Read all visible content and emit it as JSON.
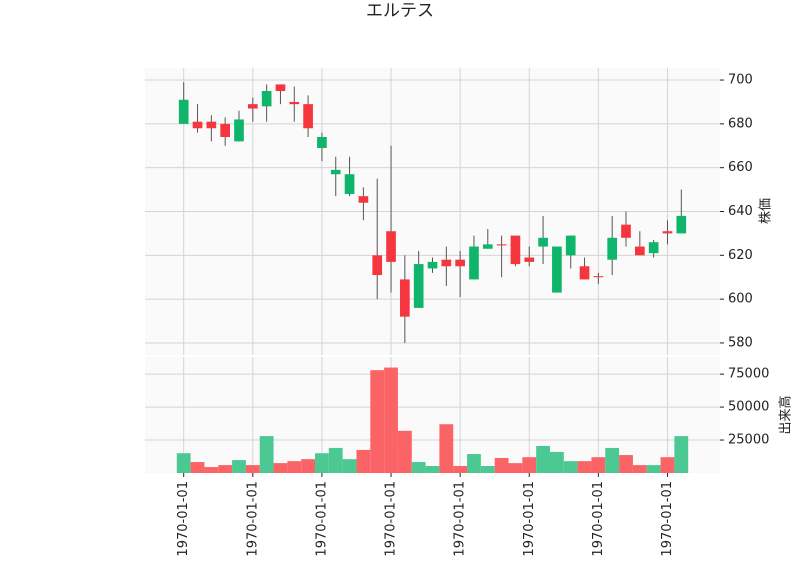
{
  "chart_data": {
    "type": "candlestick",
    "title": "エルテス",
    "ylabel": "株価",
    "volume_label": "出来高",
    "open": [
      680,
      681,
      681,
      680,
      672,
      689,
      688,
      698,
      690,
      689,
      669,
      657,
      648,
      647,
      620,
      631,
      609,
      596,
      614,
      618,
      618,
      609,
      623,
      625,
      629,
      619,
      624,
      603,
      620,
      615,
      610.5,
      618,
      634,
      624,
      621,
      631,
      630
    ],
    "high": [
      699,
      689,
      684,
      683,
      686,
      692,
      698,
      698,
      697,
      693,
      676,
      665,
      665,
      651,
      655,
      670,
      620,
      622,
      619,
      624,
      622,
      629,
      632,
      629,
      629,
      624,
      638,
      624,
      629,
      619,
      612,
      638,
      640,
      631,
      627,
      636,
      650
    ],
    "low": [
      680,
      676,
      672,
      670,
      672,
      681,
      681,
      689,
      681,
      674,
      663,
      647,
      647,
      636,
      600,
      603,
      580,
      596,
      612,
      606,
      601,
      609,
      623,
      610,
      615,
      615,
      616,
      603,
      614,
      609,
      607,
      611,
      624,
      620,
      619,
      625,
      630
    ],
    "close": [
      691,
      678,
      678,
      674,
      682,
      687,
      695,
      695,
      689,
      678,
      674,
      659,
      657,
      644,
      611,
      617,
      592,
      616,
      617,
      615,
      615,
      624,
      625,
      624.5,
      616,
      617,
      628,
      624,
      629,
      609,
      610,
      628,
      628,
      620,
      626,
      630,
      638
    ],
    "volume": [
      15000,
      8300,
      4500,
      6000,
      9800,
      6000,
      28000,
      7500,
      9000,
      10500,
      15000,
      19000,
      10500,
      17500,
      78000,
      80000,
      32000,
      8300,
      5300,
      37000,
      5300,
      14400,
      5300,
      11400,
      7500,
      12000,
      20500,
      16000,
      9000,
      9000,
      12000,
      19000,
      13600,
      6000,
      6000,
      12000,
      28000
    ],
    "up_color": "#0fb56b",
    "down_color": "#f5363e",
    "up_volume_color": "#4cc993",
    "down_volume_color": "#fa6467",
    "ylim": [
      574.5,
      705.5
    ],
    "yticks": [
      580,
      600,
      620,
      640,
      660,
      680,
      700
    ],
    "volume_ylim": [
      0,
      88000
    ],
    "volume_yticks": [
      25000,
      50000,
      75000
    ],
    "xlim": [
      -2.8,
      38.8
    ],
    "xticks": [
      {
        "value": 0,
        "label": "1970-01-01"
      },
      {
        "value": 5,
        "label": "1970-01-01"
      },
      {
        "value": 10,
        "label": "1970-01-01"
      },
      {
        "value": 15,
        "label": "1970-01-01"
      },
      {
        "value": 20,
        "label": "1970-01-01"
      },
      {
        "value": 25,
        "label": "1970-01-01"
      },
      {
        "value": 30,
        "label": "1970-01-01"
      },
      {
        "value": 35,
        "label": "1970-01-01"
      }
    ],
    "grid": true
  }
}
